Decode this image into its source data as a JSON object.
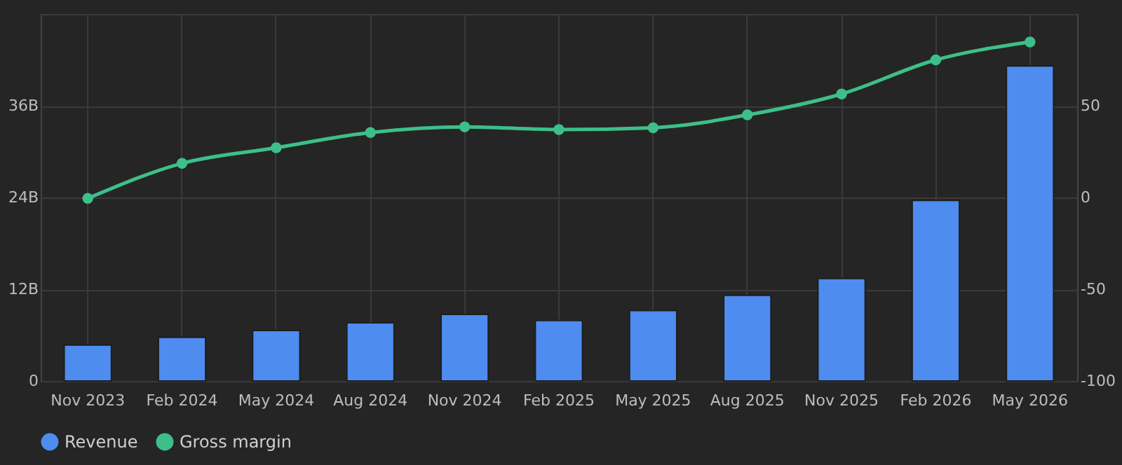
{
  "chart_data": {
    "type": "bar",
    "categories": [
      "Nov 2023",
      "Feb 2024",
      "May 2024",
      "Aug 2024",
      "Nov 2024",
      "Feb 2025",
      "May 2025",
      "Aug 2025",
      "Nov 2025",
      "Feb 2026",
      "May 2026"
    ],
    "series": [
      {
        "name": "Revenue",
        "color": "#4e8cf0",
        "values": [
          4.7,
          5.7,
          6.6,
          7.6,
          8.7,
          7.9,
          9.2,
          11.2,
          13.4,
          23.6,
          41.2
        ]
      },
      {
        "name": "Gross margin",
        "type": "line",
        "axis": "y2",
        "color": "#3dbf8a",
        "marker": "circle",
        "values": [
          -0.5,
          18.6,
          27.1,
          35.4,
          38.5,
          37,
          38,
          45,
          56.4,
          75,
          84.7
        ]
      }
    ],
    "ylim": [
      0,
      48
    ],
    "yticks": [
      0,
      {
        "value": 12,
        "label": "12B"
      },
      {
        "value": 24,
        "label": "24B"
      },
      {
        "value": 36,
        "label": "36B"
      }
    ],
    "y2lim": [
      -100,
      100
    ],
    "y2ticks": [
      -100,
      -50,
      0,
      50
    ],
    "grid": true,
    "legend": "bottom"
  }
}
